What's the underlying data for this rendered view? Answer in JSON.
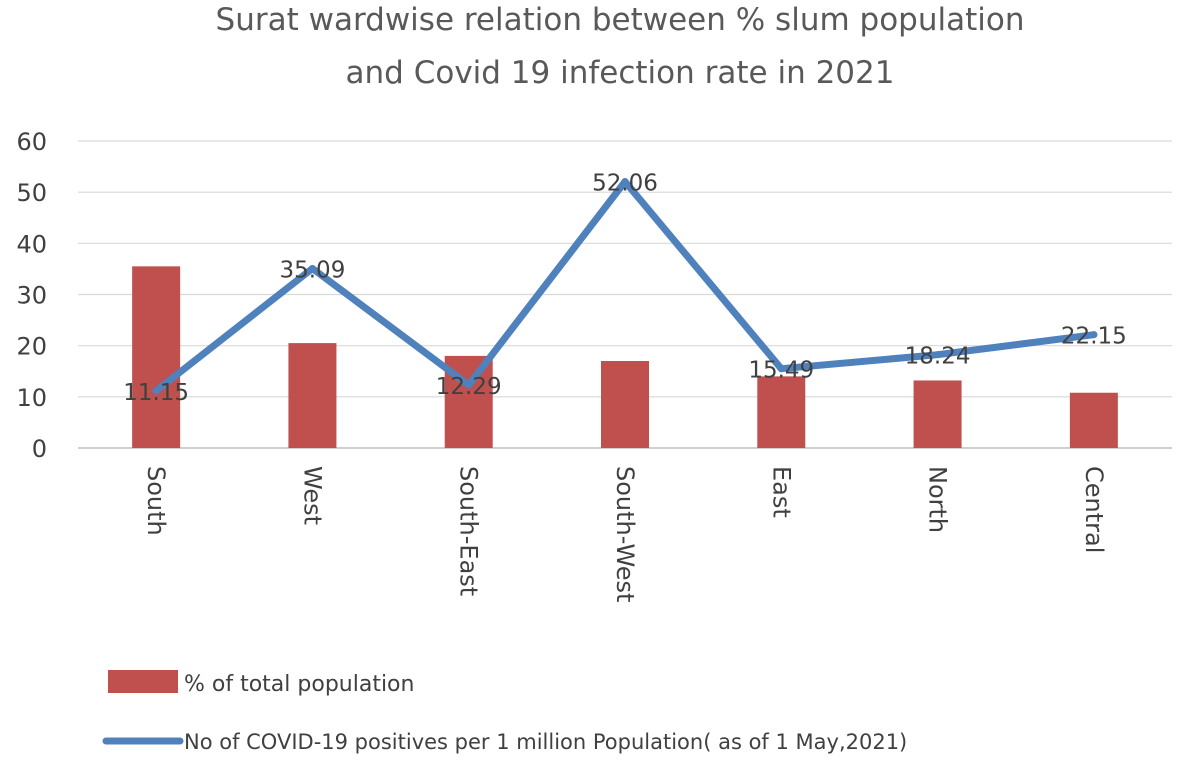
{
  "chart_data": {
    "type": "bar",
    "title_lines": [
      "Surat wardwise relation between % slum population",
      "and Covid 19 infection rate in 2021"
    ],
    "categories": [
      "South",
      "West",
      "South-East",
      "South-West",
      "East",
      "North",
      "Central"
    ],
    "ylim": [
      0,
      60
    ],
    "yticks": [
      "0",
      "10",
      "20",
      "30",
      "40",
      "50",
      "60"
    ],
    "grid": true,
    "legend_position": "bottom-left",
    "series": [
      {
        "name": "% of total population",
        "type": "bar",
        "color": "#C0504D",
        "values": [
          35.5,
          20.5,
          18,
          17,
          14,
          13.2,
          10.8
        ]
      },
      {
        "name": "No of COVID-19 positives per 1 million Population( as of 1 May,2021)",
        "type": "line",
        "color": "#4F81BD",
        "values": [
          11.15,
          35.09,
          12.29,
          52.06,
          15.49,
          18.24,
          22.15
        ],
        "data_labels": [
          "11.15",
          "35.09",
          "12.29",
          "52.06",
          "15.49",
          "18.24",
          "22.15"
        ]
      }
    ]
  }
}
